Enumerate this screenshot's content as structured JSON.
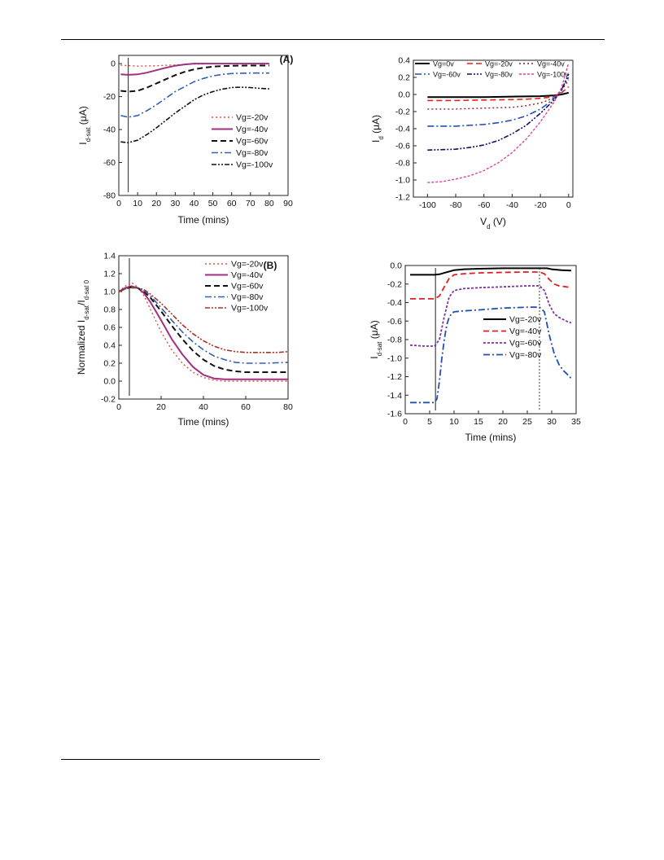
{
  "chart_data": [
    {
      "type": "line",
      "panel_label": "(A)",
      "xlabel": "Time (mins)",
      "ylabel": "I",
      "ylabel_sub": "d-sat",
      "ylabel_unit": " (μA)",
      "xlim": [
        0,
        90
      ],
      "ylim": [
        -80,
        5
      ],
      "xticks": [
        0,
        10,
        20,
        30,
        40,
        50,
        60,
        70,
        80,
        90
      ],
      "yticks": [
        0,
        -20,
        -40,
        -60,
        -80
      ],
      "vlines": [
        {
          "x": 5,
          "style": "solid"
        }
      ],
      "legend_position": "center-right",
      "series": [
        {
          "name": "Vg=-20v",
          "color": "#e05040",
          "dash": "2,3",
          "width": 1.4,
          "x": [
            1,
            10,
            20,
            30,
            40,
            50,
            60,
            70,
            80
          ],
          "y": [
            -1,
            -1.5,
            -1.3,
            -0.8,
            -0.3,
            -0.1,
            0,
            0,
            0
          ]
        },
        {
          "name": "Vg=-40v",
          "color": "#a03080",
          "dash": "",
          "width": 2,
          "x": [
            1,
            5,
            10,
            15,
            20,
            25,
            30,
            35,
            40,
            45,
            50,
            60,
            70,
            80
          ],
          "y": [
            -6.5,
            -6.8,
            -6.5,
            -5.5,
            -4,
            -2.5,
            -1.3,
            -0.5,
            0,
            0,
            0,
            0,
            0,
            0
          ]
        },
        {
          "name": "Vg=-60v",
          "color": "#111111",
          "dash": "7,4",
          "width": 2,
          "x": [
            1,
            5,
            10,
            15,
            20,
            25,
            30,
            35,
            40,
            45,
            50,
            55,
            60,
            70,
            80
          ],
          "y": [
            -16.5,
            -17,
            -16.5,
            -14.5,
            -12,
            -9.5,
            -7,
            -5,
            -3.5,
            -2.5,
            -1.8,
            -1.5,
            -1.3,
            -1.2,
            -1.2
          ]
        },
        {
          "name": "Vg=-80v",
          "color": "#3060b0",
          "dash": "8,3,2,3",
          "width": 1.6,
          "x": [
            1,
            5,
            10,
            15,
            20,
            25,
            30,
            35,
            40,
            45,
            50,
            55,
            60,
            65,
            70,
            80
          ],
          "y": [
            -31.5,
            -32.5,
            -31.5,
            -28.5,
            -25,
            -21,
            -17,
            -14,
            -11,
            -9,
            -7.5,
            -6.5,
            -6,
            -5.8,
            -5.7,
            -5.7
          ]
        },
        {
          "name": "Vg=-100v",
          "color": "#111111",
          "dash": "6,2,2,2,2,2",
          "width": 1.6,
          "x": [
            1,
            5,
            10,
            15,
            20,
            25,
            30,
            35,
            40,
            45,
            50,
            55,
            60,
            65,
            70,
            75,
            80
          ],
          "y": [
            -47.5,
            -48,
            -46.5,
            -43,
            -39,
            -34.5,
            -30,
            -26,
            -22,
            -19,
            -17,
            -15.5,
            -14.5,
            -14.3,
            -14.5,
            -15,
            -15.3
          ]
        }
      ]
    },
    {
      "type": "line",
      "panel_label": "",
      "xlabel": "V",
      "xlabel_sub": "d",
      "xlabel_unit": " (V)",
      "ylabel": "I",
      "ylabel_sub": "d",
      "ylabel_unit": " (μA)",
      "xlim": [
        -110,
        3
      ],
      "ylim": [
        -1.2,
        0.4
      ],
      "xticks": [
        -100,
        -80,
        -60,
        -40,
        -20,
        0
      ],
      "yticks": [
        0.4,
        0.2,
        0.0,
        -0.2,
        -0.4,
        -0.6,
        -0.8,
        -1.0,
        -1.2
      ],
      "ytick_labels": [
        "0.4",
        "0.2",
        "0.0",
        "-0.2",
        "-0.4",
        "-0.6",
        "-0.8",
        "-1.0",
        "-1.2"
      ],
      "legend_position": "top",
      "series": [
        {
          "name": "Vg=0v",
          "color": "#000000",
          "dash": "",
          "width": 2,
          "x": [
            -100,
            -80,
            -60,
            -40,
            -20,
            -10,
            -5,
            0
          ],
          "y": [
            -0.03,
            -0.03,
            -0.03,
            -0.025,
            -0.02,
            -0.01,
            0,
            0.02
          ]
        },
        {
          "name": "Vg=-20v",
          "color": "#e02020",
          "dash": "7,4",
          "width": 1.6,
          "x": [
            -100,
            -80,
            -60,
            -40,
            -30,
            -20,
            -15,
            -10,
            -5,
            0
          ],
          "y": [
            -0.07,
            -0.07,
            -0.065,
            -0.06,
            -0.055,
            -0.045,
            -0.035,
            -0.02,
            0.02,
            0.09
          ]
        },
        {
          "name": "Vg=-40v",
          "color": "#902020",
          "dash": "2,3",
          "width": 1.4,
          "x": [
            -100,
            -80,
            -60,
            -40,
            -30,
            -20,
            -15,
            -10,
            -5,
            0
          ],
          "y": [
            -0.17,
            -0.17,
            -0.16,
            -0.15,
            -0.13,
            -0.1,
            -0.07,
            -0.03,
            0.05,
            0.17
          ]
        },
        {
          "name": "Vg=-60v",
          "color": "#2050b0",
          "dash": "8,3,2,3",
          "width": 1.6,
          "x": [
            -100,
            -80,
            -60,
            -50,
            -40,
            -30,
            -20,
            -15,
            -10,
            -5,
            0
          ],
          "y": [
            -0.37,
            -0.37,
            -0.35,
            -0.33,
            -0.3,
            -0.25,
            -0.17,
            -0.11,
            -0.04,
            0.06,
            0.2
          ]
        },
        {
          "name": "Vg=-80v",
          "color": "#101060",
          "dash": "6,2,2,2,2,2",
          "width": 1.6,
          "x": [
            -100,
            -80,
            -70,
            -60,
            -50,
            -40,
            -30,
            -20,
            -15,
            -10,
            -5,
            0
          ],
          "y": [
            -0.65,
            -0.64,
            -0.62,
            -0.59,
            -0.54,
            -0.46,
            -0.36,
            -0.22,
            -0.14,
            -0.06,
            0.05,
            0.24
          ]
        },
        {
          "name": "Vg=-100v",
          "color": "#e040a0",
          "dash": "3,2",
          "width": 1.4,
          "x": [
            -100,
            -90,
            -80,
            -70,
            -60,
            -50,
            -40,
            -30,
            -20,
            -15,
            -10,
            -5,
            0
          ],
          "y": [
            -1.03,
            -1.02,
            -0.99,
            -0.95,
            -0.89,
            -0.8,
            -0.68,
            -0.52,
            -0.32,
            -0.2,
            -0.08,
            0.08,
            0.37
          ]
        }
      ]
    },
    {
      "type": "line",
      "panel_label": "(B)",
      "xlabel": "Time (mins)",
      "ylabel": "Normalized I",
      "ylabel_sub": "d-sat",
      "ylabel_mid": "/I",
      "ylabel_sub2": "d-sat 0",
      "xlim": [
        0,
        80
      ],
      "ylim": [
        -0.2,
        1.4
      ],
      "xticks": [
        0,
        20,
        40,
        60,
        80
      ],
      "yticks": [
        -0.2,
        0.0,
        0.2,
        0.4,
        0.6,
        0.8,
        1.0,
        1.2,
        1.4
      ],
      "ytick_labels": [
        "-0.2",
        "0.0",
        "0.2",
        "0.4",
        "0.6",
        "0.8",
        "1.0",
        "1.2",
        "1.4"
      ],
      "vlines": [
        {
          "x": 5,
          "style": "solid"
        }
      ],
      "legend_position": "top-right",
      "series": [
        {
          "name": "Vg=-20v",
          "color": "#e05040",
          "dash": "2,3",
          "width": 1.4,
          "x": [
            0,
            3,
            6,
            9,
            12,
            15,
            20,
            25,
            30,
            35,
            40,
            45,
            50,
            60,
            70,
            80
          ],
          "y": [
            1.0,
            1.06,
            1.1,
            1.05,
            0.95,
            0.8,
            0.55,
            0.35,
            0.2,
            0.1,
            0.04,
            0.01,
            0,
            0,
            0,
            0
          ]
        },
        {
          "name": "Vg=-40v",
          "color": "#a03080",
          "dash": "",
          "width": 2,
          "x": [
            0,
            3,
            6,
            9,
            12,
            15,
            20,
            25,
            30,
            35,
            40,
            45,
            50,
            60,
            70,
            80
          ],
          "y": [
            1.0,
            1.04,
            1.06,
            1.04,
            0.98,
            0.88,
            0.68,
            0.47,
            0.3,
            0.16,
            0.07,
            0.03,
            0.02,
            0.02,
            0.02,
            0.02
          ]
        },
        {
          "name": "Vg=-60v",
          "color": "#111111",
          "dash": "7,4",
          "width": 2,
          "x": [
            0,
            3,
            6,
            9,
            12,
            15,
            20,
            25,
            30,
            35,
            40,
            45,
            50,
            55,
            60,
            65,
            70,
            80
          ],
          "y": [
            1.0,
            1.03,
            1.05,
            1.04,
            1.0,
            0.93,
            0.78,
            0.62,
            0.47,
            0.34,
            0.24,
            0.17,
            0.13,
            0.11,
            0.1,
            0.1,
            0.1,
            0.1
          ]
        },
        {
          "name": "Vg=-80v",
          "color": "#3060b0",
          "dash": "8,3,2,3",
          "width": 1.6,
          "x": [
            0,
            3,
            6,
            9,
            12,
            15,
            20,
            25,
            30,
            35,
            40,
            45,
            50,
            55,
            60,
            65,
            70,
            80
          ],
          "y": [
            1.0,
            1.03,
            1.05,
            1.04,
            1.01,
            0.95,
            0.82,
            0.68,
            0.55,
            0.44,
            0.35,
            0.28,
            0.24,
            0.21,
            0.2,
            0.2,
            0.2,
            0.21
          ]
        },
        {
          "name": "Vg=-100v",
          "color": "#b03020",
          "dash": "6,2,2,2,2,2",
          "width": 1.6,
          "x": [
            0,
            3,
            6,
            9,
            12,
            15,
            20,
            25,
            30,
            35,
            40,
            45,
            50,
            55,
            60,
            65,
            70,
            75,
            80
          ],
          "y": [
            1.0,
            1.03,
            1.04,
            1.04,
            1.02,
            0.97,
            0.87,
            0.75,
            0.63,
            0.53,
            0.45,
            0.39,
            0.35,
            0.33,
            0.32,
            0.32,
            0.32,
            0.32,
            0.33
          ]
        }
      ]
    },
    {
      "type": "line",
      "panel_label": "",
      "xlabel": "Time (mins)",
      "ylabel": "I",
      "ylabel_sub": "d-sat",
      "ylabel_unit": " (μA)",
      "xlim": [
        0,
        35
      ],
      "ylim": [
        -1.6,
        0.0
      ],
      "xticks": [
        0,
        5,
        10,
        15,
        20,
        25,
        30,
        35
      ],
      "yticks": [
        0.0,
        -0.2,
        -0.4,
        -0.6,
        -0.8,
        -1.0,
        -1.2,
        -1.4,
        -1.6
      ],
      "ytick_labels": [
        "0.0",
        "-0.2",
        "-0.4",
        "-0.6",
        "-0.8",
        "-1.0",
        "-1.2",
        "-1.4",
        "-1.6"
      ],
      "vlines": [
        {
          "x": 6.2,
          "style": "solid"
        },
        {
          "x": 27.5,
          "style": "dotted"
        }
      ],
      "legend_position": "center-right",
      "series": [
        {
          "name": "Vg=-20v",
          "color": "#000000",
          "dash": "",
          "width": 2,
          "x": [
            1,
            4,
            6,
            7,
            8,
            9,
            10,
            12,
            15,
            20,
            25,
            27.5,
            29,
            30,
            32,
            34
          ],
          "y": [
            -0.1,
            -0.1,
            -0.1,
            -0.095,
            -0.08,
            -0.065,
            -0.05,
            -0.04,
            -0.035,
            -0.03,
            -0.03,
            -0.03,
            -0.03,
            -0.04,
            -0.05,
            -0.055
          ]
        },
        {
          "name": "Vg=-40v",
          "color": "#e02020",
          "dash": "7,4",
          "width": 1.8,
          "x": [
            1,
            4,
            6,
            7,
            8,
            9,
            10,
            12,
            15,
            20,
            25,
            27.5,
            28.5,
            29.5,
            30.5,
            31.5,
            33,
            34
          ],
          "y": [
            -0.36,
            -0.36,
            -0.36,
            -0.33,
            -0.23,
            -0.14,
            -0.1,
            -0.09,
            -0.08,
            -0.075,
            -0.07,
            -0.07,
            -0.09,
            -0.15,
            -0.2,
            -0.22,
            -0.23,
            -0.24
          ]
        },
        {
          "name": "Vg=-60v",
          "color": "#8030a0",
          "dash": "3,2",
          "width": 1.8,
          "x": [
            1,
            4,
            6,
            7,
            8,
            9,
            10,
            12,
            15,
            20,
            25,
            27.5,
            28.5,
            29.5,
            30.5,
            31.5,
            33,
            34
          ],
          "y": [
            -0.86,
            -0.87,
            -0.87,
            -0.8,
            -0.55,
            -0.34,
            -0.27,
            -0.25,
            -0.24,
            -0.23,
            -0.22,
            -0.22,
            -0.27,
            -0.42,
            -0.52,
            -0.56,
            -0.6,
            -0.62
          ]
        },
        {
          "name": "Vg=-80v",
          "color": "#2050b0",
          "dash": "8,3,2,3",
          "width": 1.8,
          "x": [
            1,
            4,
            6,
            6.5,
            7,
            7.5,
            8,
            8.5,
            9,
            9.5,
            10,
            12,
            15,
            20,
            25,
            27.5,
            28.5,
            29.5,
            30.5,
            31.5,
            32.5,
            33.5,
            34
          ],
          "y": [
            -1.48,
            -1.48,
            -1.48,
            -1.44,
            -1.25,
            -1.0,
            -0.8,
            -0.64,
            -0.56,
            -0.52,
            -0.5,
            -0.49,
            -0.48,
            -0.46,
            -0.45,
            -0.45,
            -0.5,
            -0.75,
            -0.95,
            -1.07,
            -1.14,
            -1.19,
            -1.22
          ]
        }
      ]
    }
  ]
}
